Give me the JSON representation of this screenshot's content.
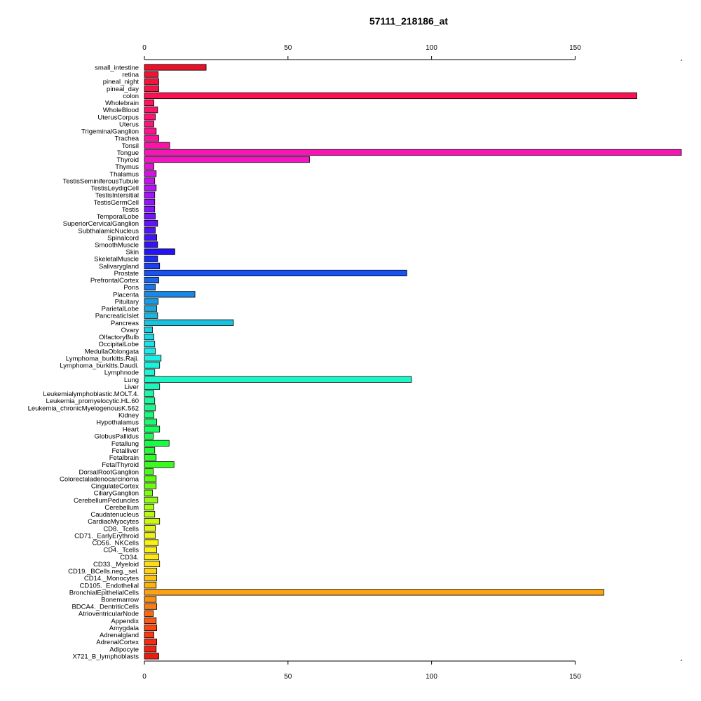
{
  "chart_data": {
    "type": "bar",
    "orientation": "horizontal",
    "title": "57111_218186_at",
    "xlabel": "",
    "ylabel": "",
    "xlim": [
      0,
      187
    ],
    "x_ticks": [
      "0",
      "50",
      "100",
      "150"
    ],
    "grid": false,
    "legend": "none",
    "axes": "top-and-bottom",
    "categories": [
      "small_intestine",
      "retina",
      "pineal_night",
      "pineal_day",
      "colon",
      "Wholebrain",
      "WholeBlood",
      "UterusCorpus",
      "Uterus",
      "TrigeminalGanglion",
      "Trachea",
      "Tonsil",
      "Tongue",
      "Thyroid",
      "Thymus",
      "Thalamus",
      "TestisSeminiferousTubule",
      "TestisLeydigCell",
      "TestisIntersitial",
      "TestisGermCell",
      "Testis",
      "TemporalLobe",
      "SuperiorCervicalGanglion",
      "SubthalamicNucleus",
      "Spinalcord",
      "SmoothMuscle",
      "Skin",
      "SkeletalMuscle",
      "Salivarygland",
      "Prostate",
      "PrefrontalCortex",
      "Pons",
      "Placenta",
      "Pituitary",
      "ParietalLobe",
      "PancreaticIslet",
      "Pancreas",
      "Ovary",
      "OlfactoryBulb",
      "OccipitalLobe",
      "MedullaOblongata",
      "Lymphoma_burkitts.Raji.",
      "Lymphoma_burkitts.Daudi.",
      "Lymphnode",
      "Lung",
      "Liver",
      "Leukemialymphoblastic.MOLT.4.",
      "Leukemia_promyelocytic.HL.60",
      "Leukemia_chronicMyelogenousK.562",
      "Kidney",
      "Hypothalamus",
      "Heart",
      "GlobusPallidus",
      "Fetallung",
      "Fetalliver",
      "Fetalbrain",
      "FetalThyroid",
      "DorsalRootGanglion",
      "Colorectaladenocarcinoma",
      "CingulateCortex",
      "CiliaryGanglion",
      "CerebellumPeduncles",
      "Cerebellum",
      "Caudatenucleus",
      "CardiacMyocytes",
      "CD8._Tcells",
      "CD71._EarlyErythroid",
      "CD56._NKCells",
      "CD4._Tcells",
      "CD34.",
      "CD33._Myeloid",
      "CD19._BCells.neg._sel.",
      "CD14._Monocytes",
      "CD105._Endothelial",
      "BronchialEpithelialCells",
      "Bonemarrow",
      "BDCA4._DentriticCells",
      "AtrioventricularNode",
      "Appendix",
      "Amygdala",
      "Adrenalgland",
      "AdrenalCortex",
      "Adipocyte",
      "X721_B_lymphoblasts"
    ],
    "values": [
      21.5,
      4.8,
      5.0,
      5.0,
      171.5,
      3.3,
      4.6,
      3.8,
      3.3,
      4.1,
      5.0,
      8.8,
      187.0,
      57.5,
      3.3,
      4.1,
      3.6,
      4.1,
      3.6,
      3.6,
      3.6,
      3.8,
      4.6,
      3.8,
      4.3,
      4.6,
      10.6,
      4.6,
      5.3,
      91.4,
      5.0,
      3.8,
      17.6,
      4.8,
      4.3,
      4.6,
      31.0,
      2.8,
      3.3,
      3.6,
      3.8,
      5.8,
      5.3,
      3.6,
      93.0,
      5.3,
      3.3,
      3.6,
      3.8,
      3.3,
      4.3,
      5.3,
      3.1,
      8.6,
      3.6,
      4.1,
      10.3,
      3.1,
      4.1,
      4.1,
      2.8,
      4.6,
      3.3,
      3.6,
      5.3,
      3.8,
      3.8,
      4.8,
      4.3,
      5.0,
      5.3,
      4.3,
      4.3,
      4.1,
      160.0,
      4.1,
      4.3,
      3.1,
      4.1,
      4.3,
      3.3,
      4.3,
      4.1,
      5.0
    ],
    "colors": [
      "#e8132b",
      "#f01333",
      "#f5133c",
      "#f81346",
      "#fa1350",
      "#fc135b",
      "#fd1367",
      "#fe1373",
      "#ff1380",
      "#ff138d",
      "#ff139a",
      "#fd13a8",
      "#fb13b6",
      "#f613c5",
      "#e413d2",
      "#d213e0",
      "#c313eb",
      "#b413f5",
      "#a413fb",
      "#9313fd",
      "#8313fd",
      "#7313fc",
      "#6313fb",
      "#5313fa",
      "#4313f9",
      "#3313f8",
      "#2313f7",
      "#1a2df5",
      "#1a3ff2",
      "#1a52ef",
      "#1a64ec",
      "#1a76e8",
      "#1a88e5",
      "#1a9ae2",
      "#1aa8e0",
      "#1ab6de",
      "#1ac2de",
      "#1acee0",
      "#1ad8e3",
      "#1ae2e6",
      "#1aeae8",
      "#1af0e4",
      "#1af3dc",
      "#1af5d2",
      "#1af6c6",
      "#1af7b8",
      "#1af8aa",
      "#1af99b",
      "#1afa8c",
      "#1afb7d",
      "#1afc6e",
      "#1afc60",
      "#1afc52",
      "#1afc44",
      "#20fc36",
      "#2cfc28",
      "#3afc1c",
      "#4afc14",
      "#5bfc12",
      "#6cfc12",
      "#7ffc12",
      "#92fc12",
      "#a6fc12",
      "#baf912",
      "#cef612",
      "#e0f312",
      "#eef212",
      "#f8f212",
      "#fcf012",
      "#fce812",
      "#fcde12",
      "#fcd212",
      "#fcc412",
      "#fcb312",
      "#fca112",
      "#fc8e12",
      "#fc7b12",
      "#fc6912",
      "#fb5812",
      "#f94812",
      "#f63a12",
      "#f22d12",
      "#ee2212",
      "#ea1912"
    ]
  }
}
